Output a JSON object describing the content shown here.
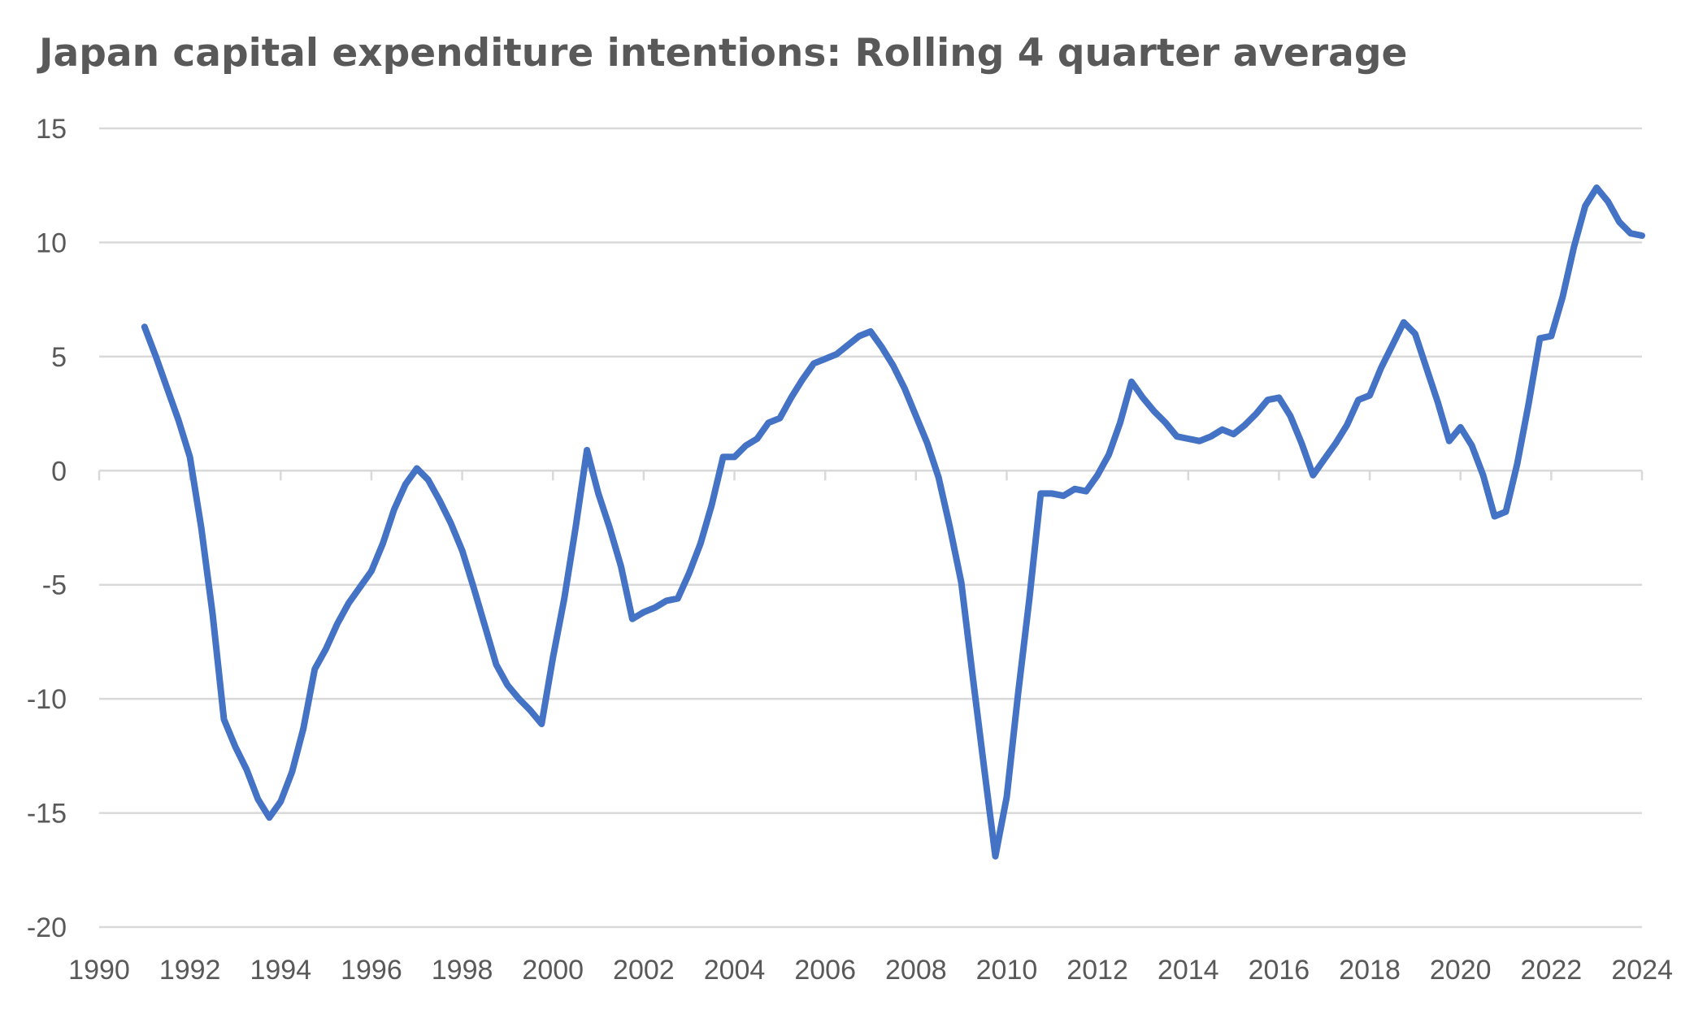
{
  "chart_data": {
    "type": "line",
    "title": "Japan capital expenditure intentions: Rolling 4 quarter average",
    "xlabel": "",
    "ylabel": "",
    "xlim": [
      1990,
      2024
    ],
    "ylim": [
      -20,
      15
    ],
    "xticks": [
      1990,
      1992,
      1994,
      1996,
      1998,
      2000,
      2002,
      2004,
      2006,
      2008,
      2010,
      2012,
      2014,
      2016,
      2018,
      2020,
      2022,
      2024
    ],
    "yticks": [
      15,
      10,
      5,
      0,
      -5,
      -10,
      -15,
      -20
    ],
    "grid": true,
    "legend": "none",
    "series_color": "#4472C4",
    "series": [
      {
        "points": [
          [
            1991.0,
            6.3
          ],
          [
            1991.25,
            5.0
          ],
          [
            1991.5,
            3.6
          ],
          [
            1991.75,
            2.2
          ],
          [
            1992.0,
            0.6
          ],
          [
            1992.25,
            -2.5
          ],
          [
            1992.5,
            -6.3
          ],
          [
            1992.75,
            -10.9
          ],
          [
            1993.0,
            -12.1
          ],
          [
            1993.25,
            -13.1
          ],
          [
            1993.5,
            -14.4
          ],
          [
            1993.75,
            -15.2
          ],
          [
            1994.0,
            -14.5
          ],
          [
            1994.25,
            -13.2
          ],
          [
            1994.5,
            -11.3
          ],
          [
            1994.75,
            -8.7
          ],
          [
            1995.0,
            -7.8
          ],
          [
            1995.25,
            -6.7
          ],
          [
            1995.5,
            -5.8
          ],
          [
            1995.75,
            -5.1
          ],
          [
            1996.0,
            -4.4
          ],
          [
            1996.25,
            -3.2
          ],
          [
            1996.5,
            -1.7
          ],
          [
            1996.75,
            -0.6
          ],
          [
            1997.0,
            0.1
          ],
          [
            1997.25,
            -0.4
          ],
          [
            1997.5,
            -1.3
          ],
          [
            1997.75,
            -2.3
          ],
          [
            1998.0,
            -3.5
          ],
          [
            1998.25,
            -5.1
          ],
          [
            1998.5,
            -6.8
          ],
          [
            1998.75,
            -8.5
          ],
          [
            1999.0,
            -9.4
          ],
          [
            1999.25,
            -10.0
          ],
          [
            1999.5,
            -10.5
          ],
          [
            1999.75,
            -11.1
          ],
          [
            2000.0,
            -8.2
          ],
          [
            2000.25,
            -5.6
          ],
          [
            2000.5,
            -2.5
          ],
          [
            2000.75,
            0.9
          ],
          [
            2001.0,
            -1.0
          ],
          [
            2001.25,
            -2.5
          ],
          [
            2001.5,
            -4.2
          ],
          [
            2001.75,
            -6.5
          ],
          [
            2002.0,
            -6.2
          ],
          [
            2002.25,
            -6.0
          ],
          [
            2002.5,
            -5.7
          ],
          [
            2002.75,
            -5.6
          ],
          [
            2003.0,
            -4.5
          ],
          [
            2003.25,
            -3.2
          ],
          [
            2003.5,
            -1.5
          ],
          [
            2003.75,
            0.6
          ],
          [
            2004.0,
            0.6
          ],
          [
            2004.25,
            1.1
          ],
          [
            2004.5,
            1.4
          ],
          [
            2004.75,
            2.1
          ],
          [
            2005.0,
            2.3
          ],
          [
            2005.25,
            3.2
          ],
          [
            2005.5,
            4.0
          ],
          [
            2005.75,
            4.7
          ],
          [
            2006.0,
            4.9
          ],
          [
            2006.25,
            5.1
          ],
          [
            2006.5,
            5.5
          ],
          [
            2006.75,
            5.9
          ],
          [
            2007.0,
            6.1
          ],
          [
            2007.25,
            5.4
          ],
          [
            2007.5,
            4.6
          ],
          [
            2007.75,
            3.6
          ],
          [
            2008.0,
            2.4
          ],
          [
            2008.25,
            1.2
          ],
          [
            2008.5,
            -0.3
          ],
          [
            2008.75,
            -2.5
          ],
          [
            2009.0,
            -4.9
          ],
          [
            2009.25,
            -9.0
          ],
          [
            2009.5,
            -13.0
          ],
          [
            2009.75,
            -16.9
          ],
          [
            2010.0,
            -14.3
          ],
          [
            2010.25,
            -9.8
          ],
          [
            2010.5,
            -5.6
          ],
          [
            2010.75,
            -1.0
          ],
          [
            2011.0,
            -1.0
          ],
          [
            2011.25,
            -1.1
          ],
          [
            2011.5,
            -0.8
          ],
          [
            2011.75,
            -0.9
          ],
          [
            2012.0,
            -0.2
          ],
          [
            2012.25,
            0.7
          ],
          [
            2012.5,
            2.1
          ],
          [
            2012.75,
            3.9
          ],
          [
            2013.0,
            3.2
          ],
          [
            2013.25,
            2.6
          ],
          [
            2013.5,
            2.1
          ],
          [
            2013.75,
            1.5
          ],
          [
            2014.0,
            1.4
          ],
          [
            2014.25,
            1.3
          ],
          [
            2014.5,
            1.5
          ],
          [
            2014.75,
            1.8
          ],
          [
            2015.0,
            1.6
          ],
          [
            2015.25,
            2.0
          ],
          [
            2015.5,
            2.5
          ],
          [
            2015.75,
            3.1
          ],
          [
            2016.0,
            3.2
          ],
          [
            2016.25,
            2.4
          ],
          [
            2016.5,
            1.2
          ],
          [
            2016.75,
            -0.2
          ],
          [
            2017.0,
            0.5
          ],
          [
            2017.25,
            1.2
          ],
          [
            2017.5,
            2.0
          ],
          [
            2017.75,
            3.1
          ],
          [
            2018.0,
            3.3
          ],
          [
            2018.25,
            4.5
          ],
          [
            2018.5,
            5.5
          ],
          [
            2018.75,
            6.5
          ],
          [
            2019.0,
            6.0
          ],
          [
            2019.25,
            4.5
          ],
          [
            2019.5,
            3.0
          ],
          [
            2019.75,
            1.3
          ],
          [
            2020.0,
            1.9
          ],
          [
            2020.25,
            1.1
          ],
          [
            2020.5,
            -0.2
          ],
          [
            2020.75,
            -2.0
          ],
          [
            2021.0,
            -1.8
          ],
          [
            2021.25,
            0.3
          ],
          [
            2021.5,
            2.9
          ],
          [
            2021.75,
            5.8
          ],
          [
            2022.0,
            5.9
          ],
          [
            2022.25,
            7.6
          ],
          [
            2022.5,
            9.8
          ],
          [
            2022.75,
            11.6
          ],
          [
            2023.0,
            12.4
          ],
          [
            2023.25,
            11.8
          ],
          [
            2023.5,
            10.9
          ],
          [
            2023.75,
            10.4
          ],
          [
            2024.0,
            10.3
          ]
        ]
      }
    ]
  }
}
